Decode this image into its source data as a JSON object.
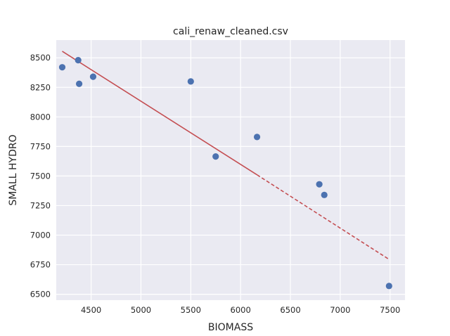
{
  "chart_data": {
    "type": "scatter",
    "title": "cali_renaw_cleaned.csv",
    "xlabel": "BIOMASS",
    "ylabel": "SMALL HYDRO",
    "xlim": [
      4150,
      7650
    ],
    "ylim": [
      6450,
      8650
    ],
    "xticks": [
      "4500",
      "5000",
      "5500",
      "6000",
      "6500",
      "7000",
      "7500"
    ],
    "yticks": [
      "6500",
      "6750",
      "7000",
      "7250",
      "7500",
      "7750",
      "8000",
      "8250",
      "8500"
    ],
    "grid": true,
    "series": [
      {
        "kind": "points",
        "color": "#4c72b0",
        "points": [
          {
            "x": 4210,
            "y": 8420
          },
          {
            "x": 4370,
            "y": 8480
          },
          {
            "x": 4380,
            "y": 8280
          },
          {
            "x": 4520,
            "y": 8340
          },
          {
            "x": 5500,
            "y": 8300
          },
          {
            "x": 5750,
            "y": 7665
          },
          {
            "x": 6165,
            "y": 7830
          },
          {
            "x": 6790,
            "y": 7430
          },
          {
            "x": 6840,
            "y": 7340
          },
          {
            "x": 7490,
            "y": 6570
          }
        ]
      },
      {
        "kind": "trend-solid",
        "color": "#c44e52",
        "line": [
          {
            "x": 4210,
            "y": 8555
          },
          {
            "x": 6165,
            "y": 7510
          }
        ]
      },
      {
        "kind": "trend-dashed",
        "color": "#c44e52",
        "line": [
          {
            "x": 6165,
            "y": 7510
          },
          {
            "x": 7490,
            "y": 6795
          }
        ]
      }
    ]
  }
}
